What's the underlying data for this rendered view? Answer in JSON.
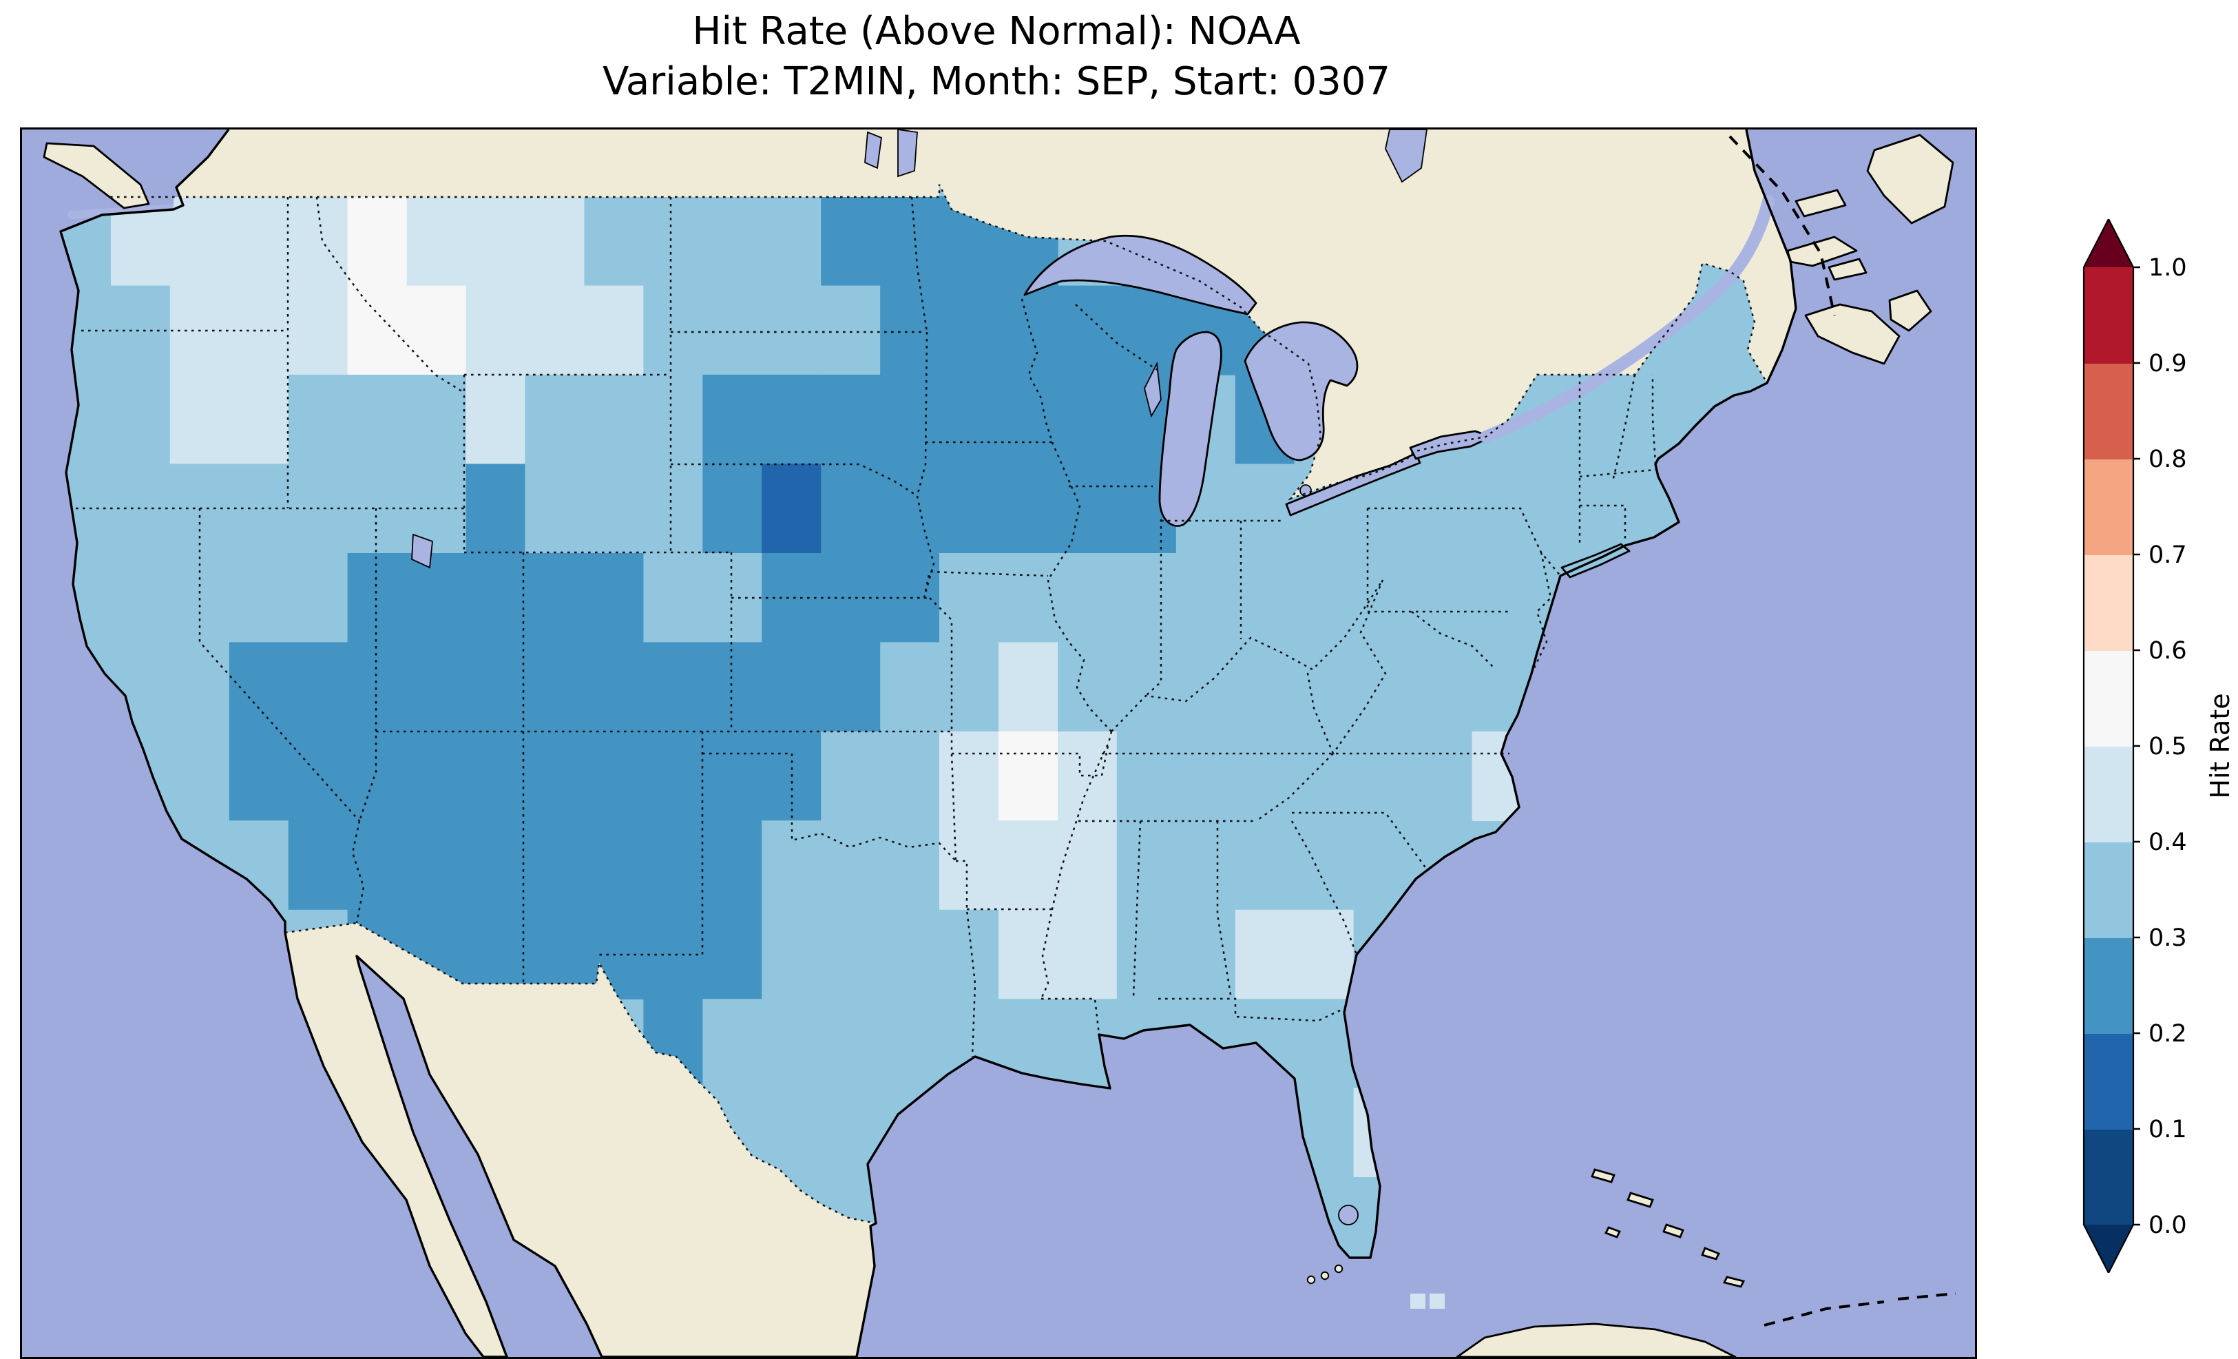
{
  "chart_data": {
    "type": "heatmap",
    "map_region": "Contiguous United States (with surrounding Canada, Mexico, Atlantic and Pacific shown)",
    "title": "Hit Rate (Above Normal): NOAA",
    "subtitle": "Variable: T2MIN, Month: SEP, Start: 0307",
    "dataset": "NOAA",
    "metric": "Hit Rate (Above Normal)",
    "variable": "T2MIN",
    "month": "SEP",
    "start": "0307",
    "colorbar": {
      "label": "Hit Rate",
      "ticks": [
        "1.0",
        "0.9",
        "0.8",
        "0.7",
        "0.6",
        "0.5",
        "0.4",
        "0.3",
        "0.2",
        "0.1",
        "0.0"
      ],
      "range": [
        0.0,
        1.0
      ],
      "extend": "both",
      "band_colors": [
        "#114781",
        "#2166ac",
        "#4393c3",
        "#92c5de",
        "#d1e5f0",
        "#f7f7f7",
        "#fddbc7",
        "#f4a582",
        "#d6604d",
        "#b2182b"
      ],
      "under_color": "#053061",
      "over_color": "#67001f"
    },
    "grid": {
      "description": "Approximate hit-rate field read off the map on a 2-degree grid. Digit d means hit rate in band [d/10,(d+1)/10] (midpoint ~ d/10+0.05); '.' means no data / outside CONUS. Rows run north to south (lat centers 48 down to 26), columns west to east (lon centers -124 to -68).",
      "lon_start": -124,
      "lon_step": 2,
      "lat_start": 48,
      "lat_step": -2,
      "rows": [
        "34444544433332222..........33",
        "334445544433332222222....3333",
        "3344333433322222222.23.33333.",
        "3333333233321222222333333333.",
        "33333222223322233333333333...",
        "3332222222222233433333333....",
        ".332222222222334543333334....",
        "..3322222222333444333333.....",
        "....3222222233334433443......",
        "..........233333333333.......",
        ".............3.......34......",
        ".............3.......33......"
      ],
      "displayed_value_range": [
        0.1,
        0.6
      ],
      "notes": "Lowest hit rates (0.1-0.2, strong blue) near the South Dakota / Nebraska border; broad 0.2-0.3 region over the Upper Midwest, Northern Plains and Four Corners / southern Rockies; lightest values (0.4-0.6, near white) over interior Pacific Northwest / Montana, the Arkansas-Missouri area, central Florida and parts of the Southeast."
    },
    "style": {
      "ocean_color": "#9fabdd",
      "land_color": "#efebd7",
      "lake_color": "#a9b4e2",
      "background": "#ffffff",
      "state_borders": "dotted black",
      "coastline": "solid black"
    }
  }
}
